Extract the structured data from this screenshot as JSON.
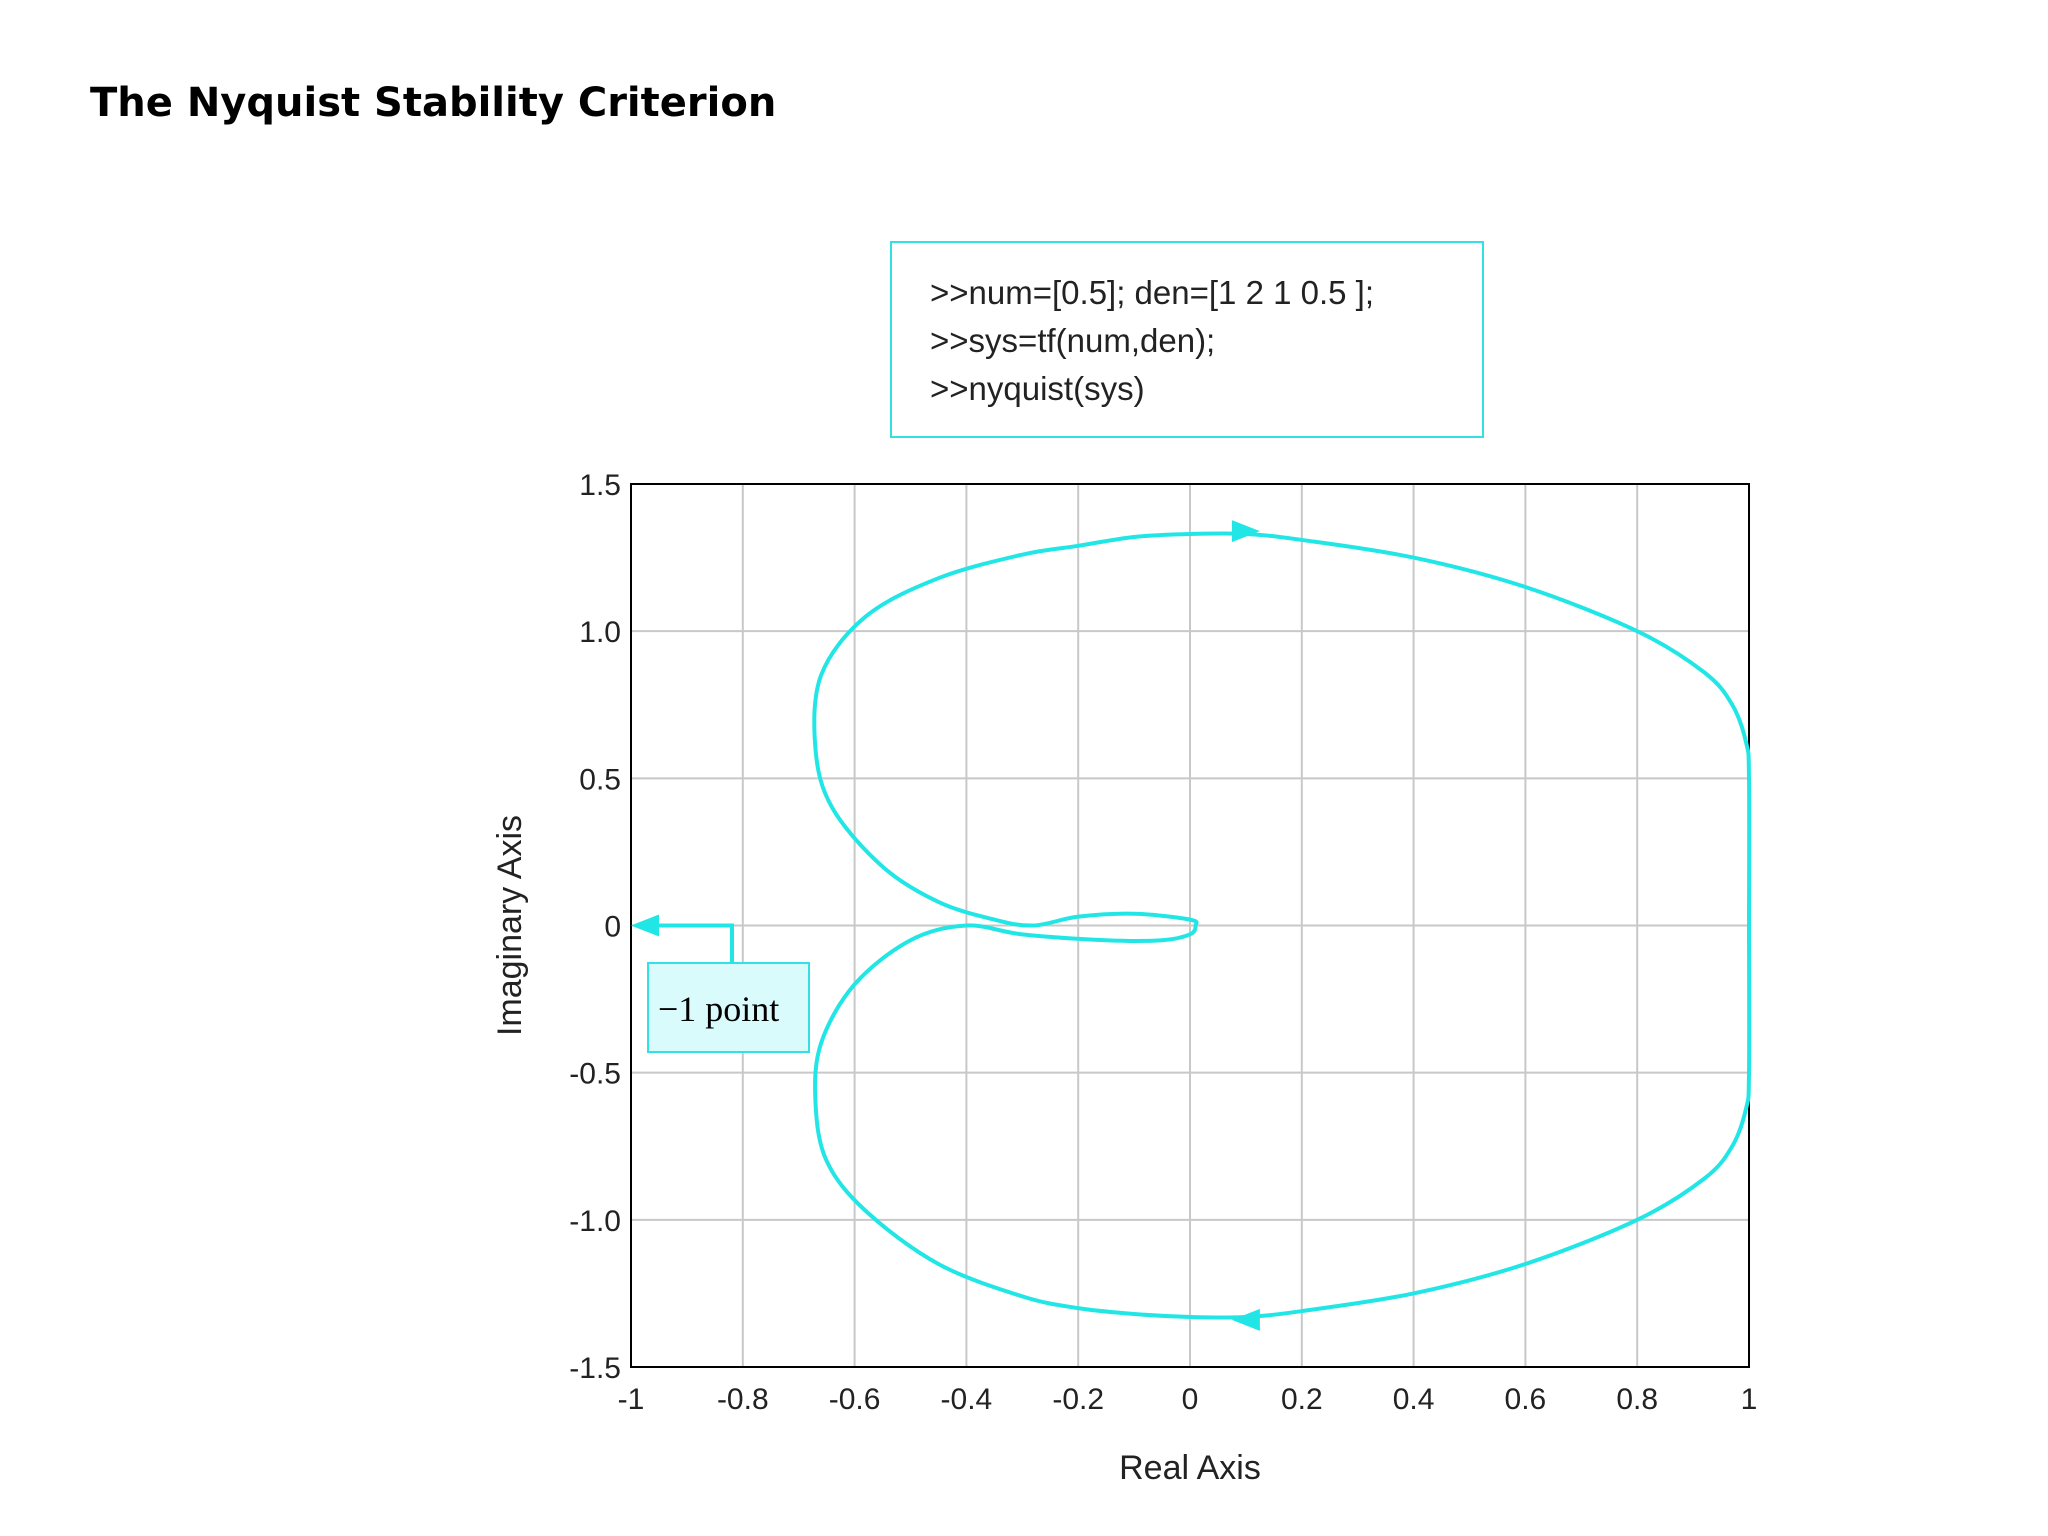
{
  "slide": {
    "title": "The Nyquist Stability Criterion"
  },
  "code_box": {
    "lines": [
      ">>num=[0.5]; den=[1 2 1 0.5 ];",
      ">>sys=tf(num,den);",
      ">>nyquist(sys)"
    ],
    "border_color": "#33e0e6"
  },
  "chart_data": {
    "type": "line",
    "title": "",
    "xlabel": "Real Axis",
    "ylabel": "Imaginary Axis",
    "xlim": [
      -1,
      1
    ],
    "ylim": [
      -1.5,
      1.5
    ],
    "x_ticks": [
      -1,
      -0.8,
      -0.6,
      -0.4,
      -0.2,
      0,
      0.2,
      0.4,
      0.6,
      0.8,
      1
    ],
    "x_tick_labels": [
      "-1",
      "-0.8",
      "-0.6",
      "-0.4",
      "-0.2",
      "0",
      "0.2",
      "0.4",
      "0.6",
      "0.8",
      "1"
    ],
    "y_ticks": [
      -1.5,
      -1.0,
      -0.5,
      0,
      0.5,
      1.0,
      1.5
    ],
    "y_tick_labels": [
      "-1.5",
      "-1.0",
      "-0.5",
      "0",
      "0.5",
      "1.0",
      "1.5"
    ],
    "grid": true,
    "line_color": "#22e6e6",
    "series": [
      {
        "x": [
          1.0,
          1.0,
          0.995,
          0.97,
          0.92,
          0.8,
          0.6,
          0.4,
          0.2,
          0.1,
          0.0,
          -0.1,
          -0.2,
          -0.3,
          -0.45,
          -0.58,
          -0.66,
          -0.67,
          -0.64,
          -0.55,
          -0.45,
          -0.35,
          -0.28,
          -0.2,
          -0.1,
          0.0,
          0.01,
          0.0,
          -0.05,
          -0.15,
          -0.3,
          -0.4,
          -0.5,
          -0.6,
          -0.66,
          -0.67,
          -0.65,
          -0.58,
          -0.45,
          -0.3,
          -0.2,
          -0.1,
          0.0,
          0.1,
          0.2,
          0.4,
          0.6,
          0.8,
          0.92,
          0.97,
          0.995,
          1.0,
          1.0
        ],
        "y": [
          0.0,
          0.5,
          0.62,
          0.75,
          0.86,
          1.0,
          1.15,
          1.25,
          1.31,
          1.33,
          1.33,
          1.32,
          1.29,
          1.26,
          1.18,
          1.05,
          0.85,
          0.6,
          0.4,
          0.2,
          0.08,
          0.02,
          0.0,
          0.03,
          0.04,
          0.02,
          0.0,
          -0.03,
          -0.05,
          -0.05,
          -0.03,
          0.0,
          -0.05,
          -0.2,
          -0.4,
          -0.6,
          -0.8,
          -0.97,
          -1.15,
          -1.26,
          -1.3,
          -1.32,
          -1.33,
          -1.33,
          -1.31,
          -1.25,
          -1.15,
          -1.0,
          -0.86,
          -0.75,
          -0.62,
          -0.5,
          0.0
        ]
      }
    ],
    "direction_arrows": [
      {
        "x": 0.1,
        "y": 1.34,
        "direction": "right"
      },
      {
        "x": 0.1,
        "y": -1.34,
        "direction": "left"
      }
    ],
    "annotations": [
      {
        "text": "−1 point",
        "points_to": {
          "x": -1,
          "y": 0
        }
      }
    ]
  }
}
